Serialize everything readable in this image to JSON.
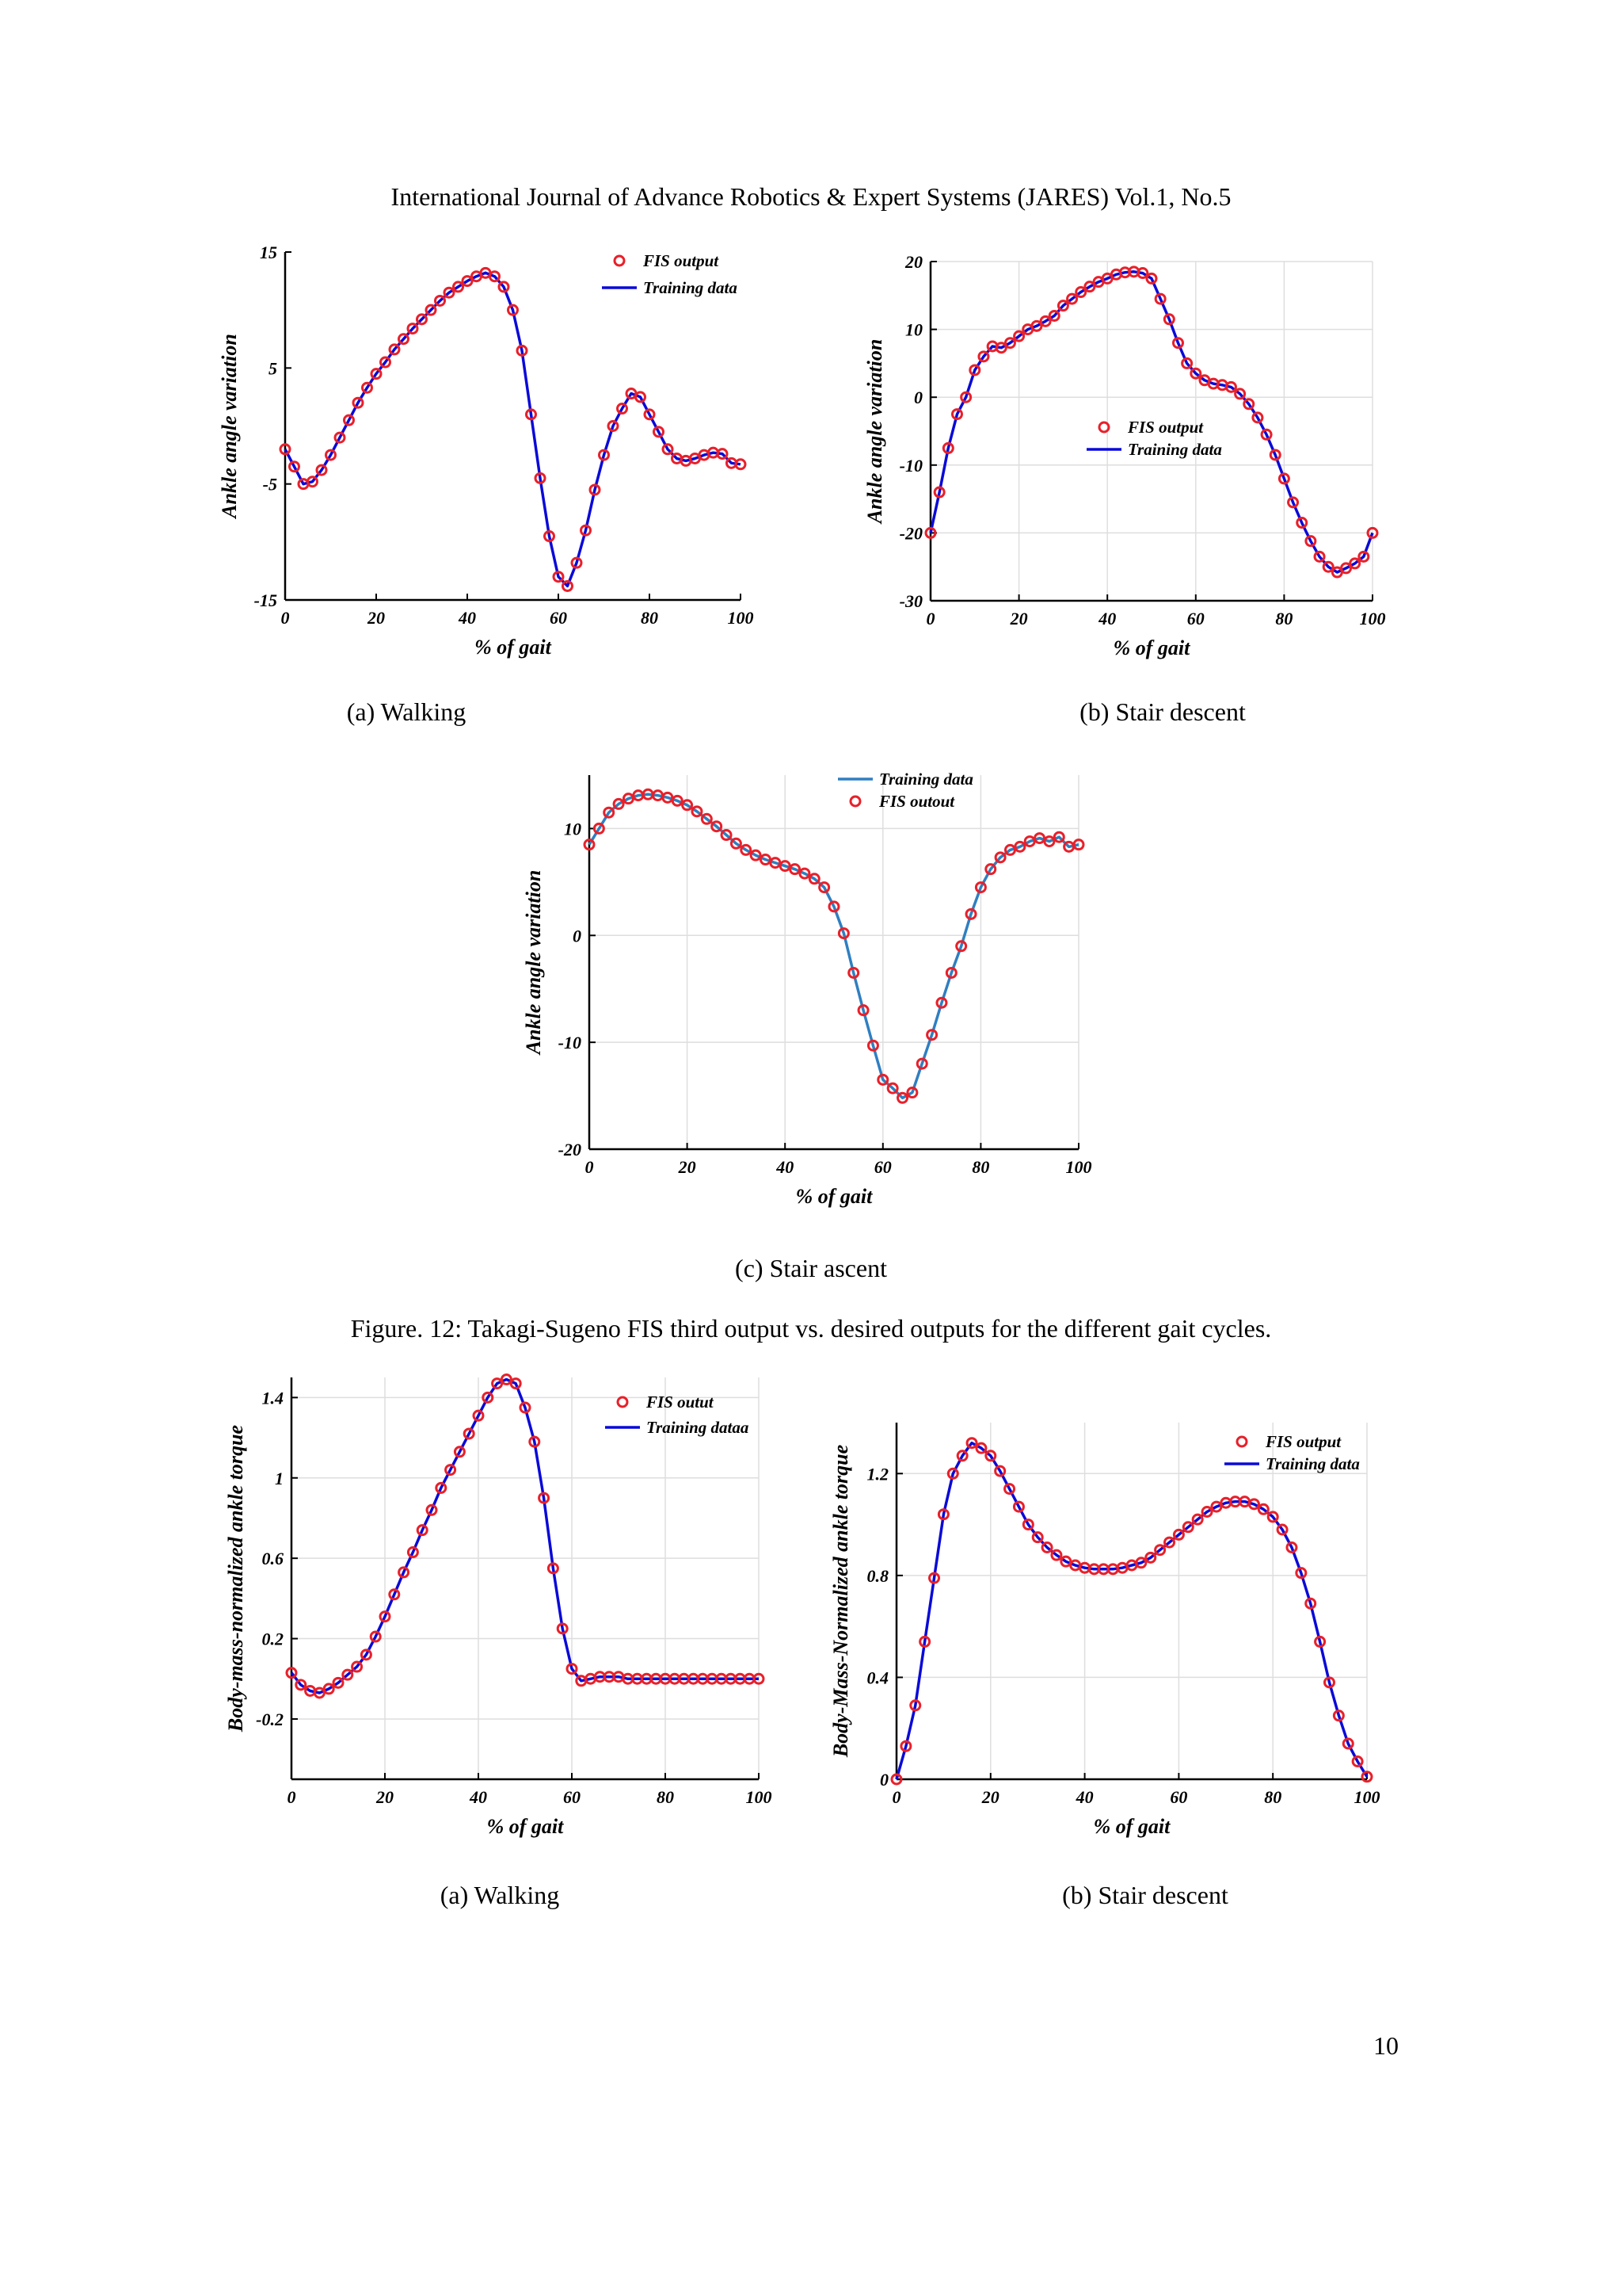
{
  "header": "International Journal of Advance Robotics & Expert Systems (JARES) Vol.1, No.5",
  "figure_caption": "Figure. 12: Takagi-Sugeno FIS third output vs. desired outputs for the different gait cycles.",
  "page_number": "10",
  "colors": {
    "training": "#0a0ad8",
    "training_c": "#2f7fc1",
    "fis": "#e8202a",
    "grid": "#dedede"
  },
  "subfigures": [
    {
      "caption": "(a) Walking"
    },
    {
      "caption": "(b) Stair descent"
    },
    {
      "caption": "(c) Stair ascent"
    },
    {
      "caption": "(a) Walking"
    },
    {
      "caption": "(b) Stair descent"
    }
  ],
  "chart_data": [
    {
      "type": "line",
      "xlabel": "% of gait",
      "ylabel": "Ankle angle variation",
      "xlim": [
        0,
        100
      ],
      "ylim": [
        -15,
        15
      ],
      "xticks": [
        0,
        20,
        40,
        60,
        80,
        100
      ],
      "yticks": [
        -15,
        -5,
        5,
        15
      ],
      "grid": false,
      "legend_position": "top-right",
      "series": [
        {
          "name": "FIS output",
          "style": "markers"
        },
        {
          "name": "Training data",
          "style": "line"
        }
      ],
      "x": [
        0,
        2,
        4,
        6,
        8,
        10,
        12,
        14,
        16,
        18,
        20,
        22,
        24,
        26,
        28,
        30,
        32,
        34,
        36,
        38,
        40,
        42,
        44,
        46,
        48,
        50,
        52,
        54,
        56,
        58,
        60,
        62,
        64,
        66,
        68,
        70,
        72,
        74,
        76,
        78,
        80,
        82,
        84,
        86,
        88,
        90,
        92,
        94,
        96,
        98,
        100
      ],
      "y": [
        -2,
        -3.5,
        -5,
        -4.8,
        -3.8,
        -2.5,
        -1,
        0.5,
        2,
        3.3,
        4.5,
        5.5,
        6.6,
        7.5,
        8.4,
        9.2,
        10,
        10.8,
        11.5,
        12,
        12.5,
        12.9,
        13.2,
        12.9,
        12,
        10,
        6.5,
        1,
        -4.5,
        -9.5,
        -13,
        -13.8,
        -11.8,
        -9,
        -5.5,
        -2.5,
        0,
        1.5,
        2.8,
        2.5,
        1,
        -0.5,
        -2,
        -2.8,
        -3,
        -2.8,
        -2.5,
        -2.3,
        -2.4,
        -3.2,
        -3.3
      ]
    },
    {
      "type": "line",
      "xlabel": "% of gait",
      "ylabel": "Ankle angle variation",
      "xlim": [
        0,
        100
      ],
      "ylim": [
        -30,
        20
      ],
      "xticks": [
        0,
        20,
        40,
        60,
        80,
        100
      ],
      "yticks": [
        -30,
        -20,
        -10,
        0,
        10,
        20
      ],
      "grid": true,
      "legend_position": "center",
      "series": [
        {
          "name": "FIS output",
          "style": "markers"
        },
        {
          "name": "Training data",
          "style": "line"
        }
      ],
      "x": [
        0,
        2,
        4,
        6,
        8,
        10,
        12,
        14,
        16,
        18,
        20,
        22,
        24,
        26,
        28,
        30,
        32,
        34,
        36,
        38,
        40,
        42,
        44,
        46,
        48,
        50,
        52,
        54,
        56,
        58,
        60,
        62,
        64,
        66,
        68,
        70,
        72,
        74,
        76,
        78,
        80,
        82,
        84,
        86,
        88,
        90,
        92,
        94,
        96,
        98,
        100
      ],
      "y": [
        -20,
        -14,
        -7.5,
        -2.5,
        0,
        4,
        6,
        7.5,
        7.3,
        8,
        9,
        10,
        10.5,
        11.2,
        12,
        13.5,
        14.5,
        15.5,
        16.3,
        17,
        17.5,
        18.1,
        18.4,
        18.5,
        18.3,
        17.5,
        14.5,
        11.5,
        8,
        5,
        3.5,
        2.5,
        2,
        1.8,
        1.5,
        0.5,
        -1,
        -3,
        -5.5,
        -8.5,
        -12,
        -15.5,
        -18.5,
        -21.2,
        -23.5,
        -25,
        -25.8,
        -25.2,
        -24.5,
        -23.5,
        -20
      ]
    },
    {
      "type": "line",
      "xlabel": "% of gait",
      "ylabel": "Ankle angle variation",
      "xlim": [
        0,
        100
      ],
      "ylim": [
        -20,
        15
      ],
      "xticks": [
        0,
        20,
        40,
        60,
        80,
        100
      ],
      "yticks": [
        -20,
        -10,
        0,
        10
      ],
      "grid": true,
      "legend_position": "top-right",
      "series": [
        {
          "name": "Training data",
          "style": "line"
        },
        {
          "name": "FIS outout",
          "style": "markers"
        }
      ],
      "x": [
        0,
        2,
        4,
        6,
        8,
        10,
        12,
        14,
        16,
        18,
        20,
        22,
        24,
        26,
        28,
        30,
        32,
        34,
        36,
        38,
        40,
        42,
        44,
        46,
        48,
        50,
        52,
        54,
        56,
        58,
        60,
        62,
        64,
        66,
        68,
        70,
        72,
        74,
        76,
        78,
        80,
        82,
        84,
        86,
        88,
        90,
        92,
        94,
        96,
        98,
        100
      ],
      "y": [
        8.5,
        10,
        11.5,
        12.3,
        12.8,
        13.1,
        13.2,
        13.1,
        12.9,
        12.6,
        12.2,
        11.6,
        10.9,
        10.2,
        9.4,
        8.6,
        8,
        7.5,
        7.1,
        6.8,
        6.5,
        6.2,
        5.8,
        5.3,
        4.5,
        2.7,
        0.2,
        -3.5,
        -7,
        -10.3,
        -13.5,
        -14.3,
        -15.2,
        -14.7,
        -12,
        -9.3,
        -6.3,
        -3.5,
        -1,
        2,
        4.5,
        6.2,
        7.3,
        8,
        8.3,
        8.8,
        9.1,
        8.8,
        9.2,
        8.3,
        8.5
      ]
    },
    {
      "type": "line",
      "xlabel": "% of gait",
      "ylabel": "Body-mass-normalized ankle torque",
      "xlim": [
        0,
        100
      ],
      "ylim": [
        -0.5,
        1.5
      ],
      "xticks": [
        0,
        20,
        40,
        60,
        80,
        100
      ],
      "yticks": [
        -0.2,
        0.2,
        0.6,
        1,
        1.4
      ],
      "grid": true,
      "legend_position": "top-right",
      "series": [
        {
          "name": "FIS outut",
          "style": "markers"
        },
        {
          "name": "Training dataa",
          "style": "line"
        }
      ],
      "x": [
        0,
        2,
        4,
        6,
        8,
        10,
        12,
        14,
        16,
        18,
        20,
        22,
        24,
        26,
        28,
        30,
        32,
        34,
        36,
        38,
        40,
        42,
        44,
        46,
        48,
        50,
        52,
        54,
        56,
        58,
        60,
        62,
        64,
        66,
        68,
        70,
        72,
        74,
        76,
        78,
        80,
        82,
        84,
        86,
        88,
        90,
        92,
        94,
        96,
        98,
        100
      ],
      "y": [
        0.03,
        -0.03,
        -0.06,
        -0.07,
        -0.05,
        -0.02,
        0.02,
        0.06,
        0.12,
        0.21,
        0.31,
        0.42,
        0.53,
        0.63,
        0.74,
        0.84,
        0.95,
        1.04,
        1.13,
        1.22,
        1.31,
        1.4,
        1.47,
        1.49,
        1.47,
        1.35,
        1.18,
        0.9,
        0.55,
        0.25,
        0.05,
        -0.01,
        0,
        0.01,
        0.01,
        0.01,
        0,
        0,
        0,
        0,
        0,
        0,
        0,
        0,
        0,
        0,
        0,
        0,
        0,
        0,
        0
      ]
    },
    {
      "type": "line",
      "xlabel": "% of gait",
      "ylabel": "Body-Mass-Normalized ankle torque",
      "xlim": [
        0,
        100
      ],
      "ylim": [
        0,
        1.4
      ],
      "xticks": [
        0,
        20,
        40,
        60,
        80,
        100
      ],
      "yticks": [
        0,
        0.4,
        0.8,
        1.2
      ],
      "grid": true,
      "legend_position": "top-right",
      "series": [
        {
          "name": "FIS output",
          "style": "markers"
        },
        {
          "name": "Training data",
          "style": "line"
        }
      ],
      "x": [
        0,
        2,
        4,
        6,
        8,
        10,
        12,
        14,
        16,
        18,
        20,
        22,
        24,
        26,
        28,
        30,
        32,
        34,
        36,
        38,
        40,
        42,
        44,
        46,
        48,
        50,
        52,
        54,
        56,
        58,
        60,
        62,
        64,
        66,
        68,
        70,
        72,
        74,
        76,
        78,
        80,
        82,
        84,
        86,
        88,
        90,
        92,
        94,
        96,
        98,
        100
      ],
      "y": [
        0,
        0.13,
        0.29,
        0.54,
        0.79,
        1.04,
        1.2,
        1.27,
        1.32,
        1.3,
        1.27,
        1.21,
        1.14,
        1.07,
        1.0,
        0.95,
        0.91,
        0.88,
        0.855,
        0.84,
        0.83,
        0.825,
        0.825,
        0.825,
        0.83,
        0.84,
        0.85,
        0.87,
        0.9,
        0.93,
        0.96,
        0.99,
        1.02,
        1.05,
        1.07,
        1.085,
        1.09,
        1.09,
        1.08,
        1.06,
        1.03,
        0.98,
        0.91,
        0.81,
        0.69,
        0.54,
        0.38,
        0.25,
        0.14,
        0.07,
        0.01
      ]
    }
  ]
}
